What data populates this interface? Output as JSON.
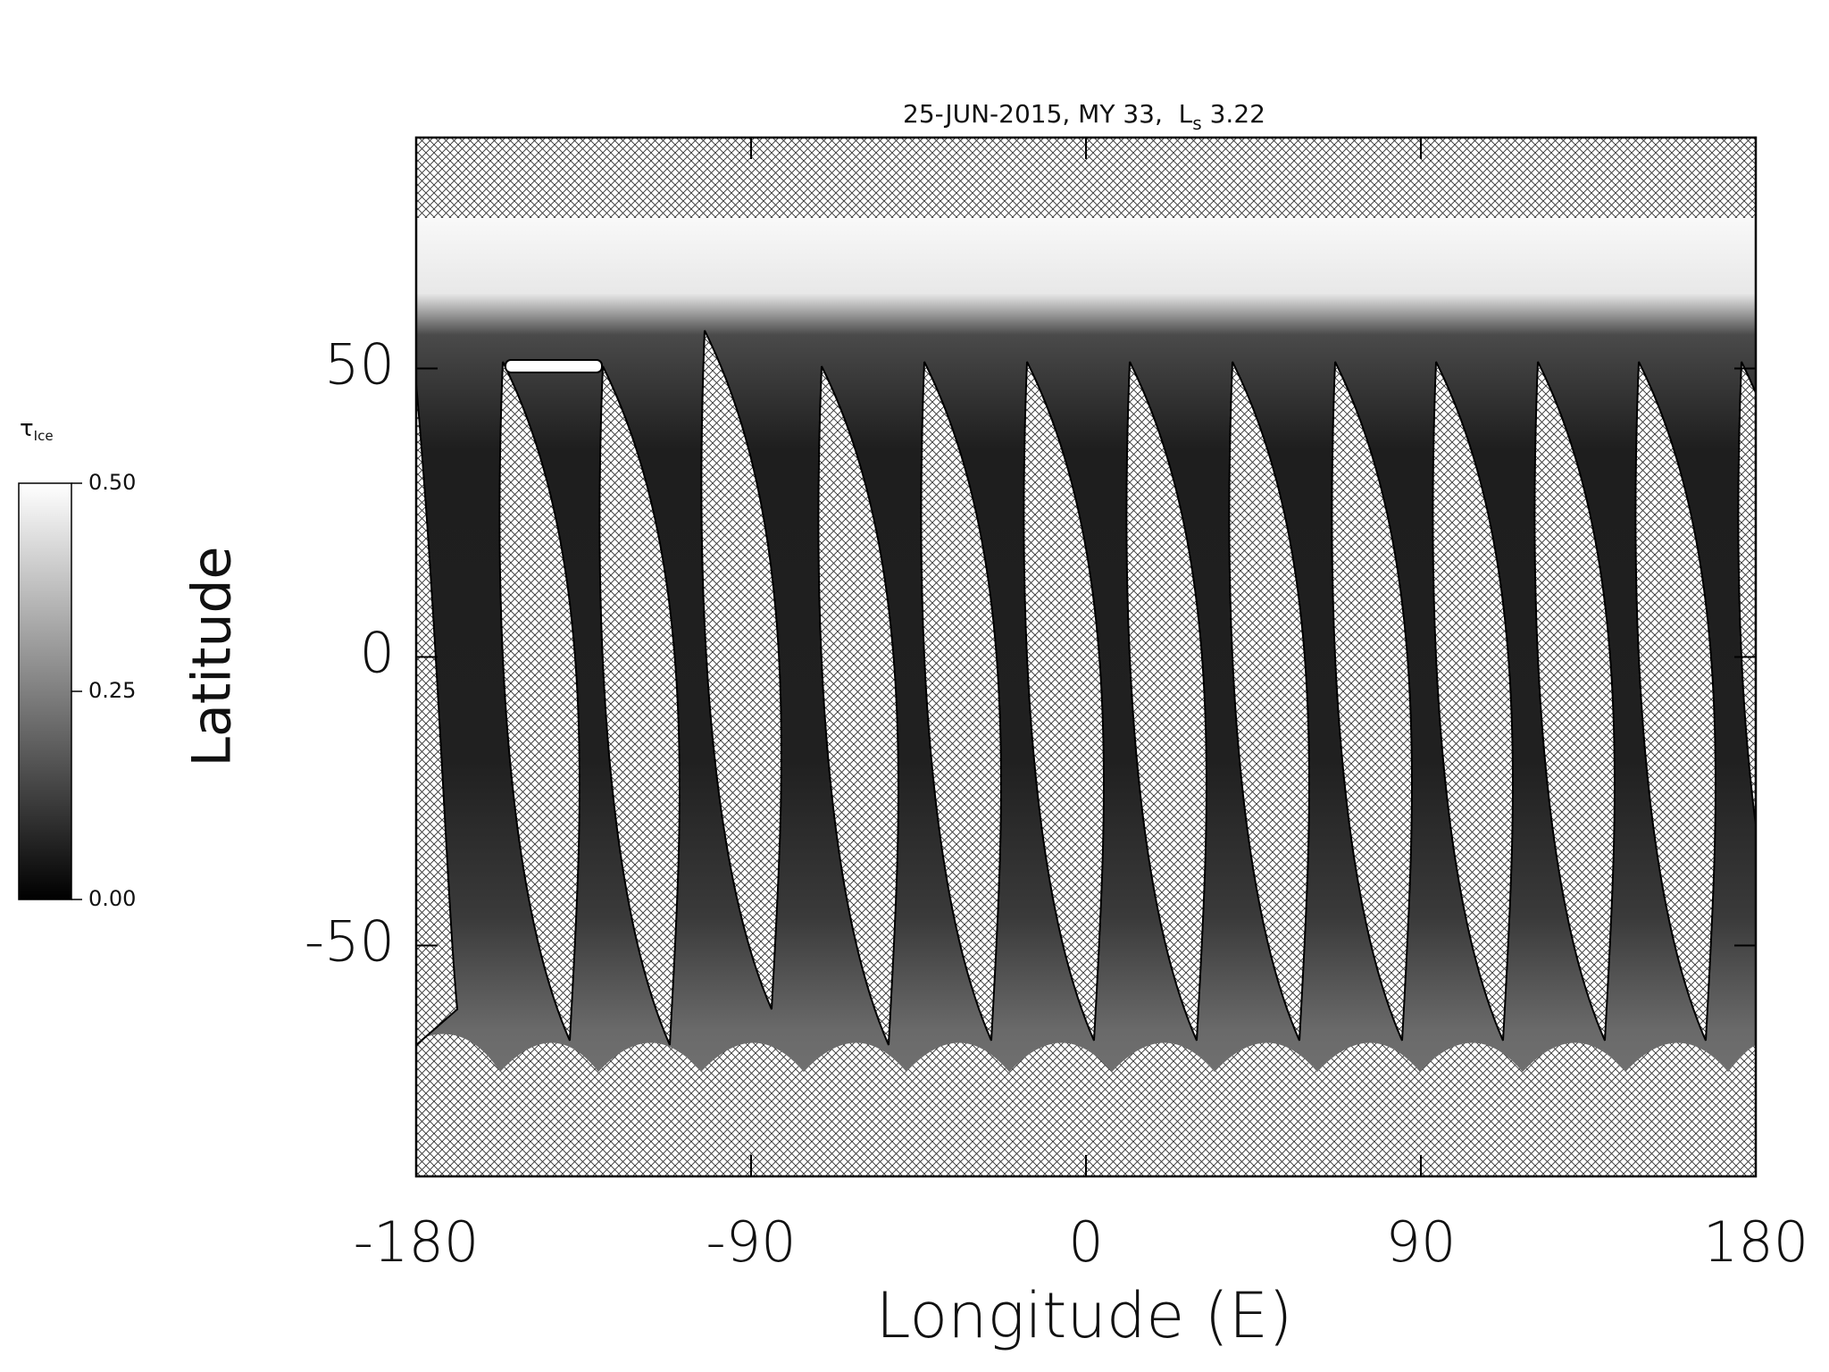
{
  "chart_data": {
    "type": "map",
    "title": "25-JUN-2015, MY 33,  L",
    "title_subscript": "s",
    "title_suffix": " 3.22",
    "xlabel": "Longitude (E)",
    "ylabel": "Latitude",
    "xlim": [
      -180,
      180
    ],
    "ylim": [
      -90,
      90
    ],
    "xticks": [
      -180,
      -90,
      0,
      90,
      180
    ],
    "yticks": [
      -50,
      0,
      50
    ],
    "colorbar": {
      "label": "τ",
      "label_subscript": "Ice",
      "lim": [
        0,
        0.5
      ],
      "ticks": [
        {
          "value": 0,
          "label": "0.00"
        },
        {
          "value": 0.25,
          "label": "0.25"
        },
        {
          "value": 0.5,
          "label": "0.50"
        }
      ]
    }
  }
}
